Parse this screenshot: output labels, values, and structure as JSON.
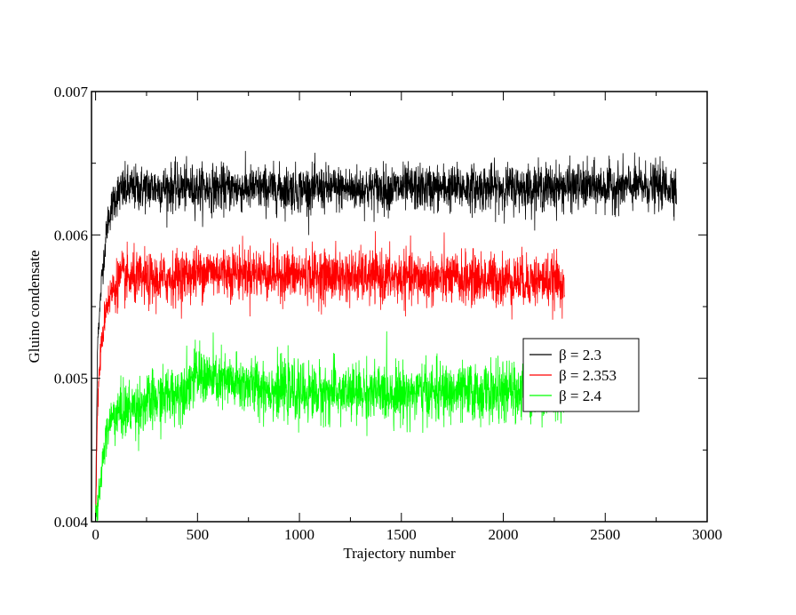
{
  "chart_data": {
    "type": "line",
    "title": "",
    "xlabel": "Trajectory number",
    "ylabel": "Gluino condensate",
    "xlim": [
      -20,
      3000
    ],
    "ylim": [
      0.004,
      0.007
    ],
    "x_ticks": [
      0,
      500,
      1000,
      1500,
      2000,
      2500,
      3000
    ],
    "x_tick_labels": [
      "0",
      "500",
      "1000",
      "1500",
      "2000",
      "2500",
      "3000"
    ],
    "y_ticks": [
      0.004,
      0.005,
      0.006,
      0.007
    ],
    "y_tick_labels": [
      "0.004",
      "0.005",
      "0.006",
      "0.007"
    ],
    "grid": false,
    "legend_position": "center-right",
    "series": [
      {
        "name": "β = 2.3",
        "color": "#000000",
        "x_end": 2850,
        "points": [
          [
            0,
            0.004
          ],
          [
            10,
            0.0053
          ],
          [
            20,
            0.00545
          ],
          [
            30,
            0.0057
          ],
          [
            45,
            0.0059
          ],
          [
            60,
            0.0061
          ],
          [
            80,
            0.0062
          ],
          [
            100,
            0.00628
          ],
          [
            150,
            0.00632
          ],
          [
            300,
            0.00633
          ],
          [
            1000,
            0.00632
          ],
          [
            2000,
            0.00633
          ],
          [
            2850,
            0.00634
          ]
        ],
        "noise": 8e-05
      },
      {
        "name": "β = 2.353",
        "color": "#ff0000",
        "x_end": 2300,
        "points": [
          [
            0,
            0.004
          ],
          [
            10,
            0.0048
          ],
          [
            20,
            0.0051
          ],
          [
            35,
            0.0053
          ],
          [
            50,
            0.0055
          ],
          [
            80,
            0.0056
          ],
          [
            120,
            0.0057
          ],
          [
            300,
            0.00568
          ],
          [
            550,
            0.00575
          ],
          [
            1000,
            0.00572
          ],
          [
            1500,
            0.0057
          ],
          [
            2300,
            0.00568
          ]
        ],
        "noise": 9e-05
      },
      {
        "name": "β = 2.4",
        "color": "#00ff00",
        "x_end": 2300,
        "points": [
          [
            0,
            0.004
          ],
          [
            20,
            0.0042
          ],
          [
            40,
            0.0045
          ],
          [
            70,
            0.0047
          ],
          [
            100,
            0.00475
          ],
          [
            200,
            0.0048
          ],
          [
            300,
            0.00485
          ],
          [
            400,
            0.0049
          ],
          [
            500,
            0.00502
          ],
          [
            600,
            0.00498
          ],
          [
            1000,
            0.0049
          ],
          [
            1500,
            0.0049
          ],
          [
            2000,
            0.0049
          ],
          [
            2300,
            0.00492
          ]
        ],
        "noise": 0.0001
      }
    ]
  }
}
